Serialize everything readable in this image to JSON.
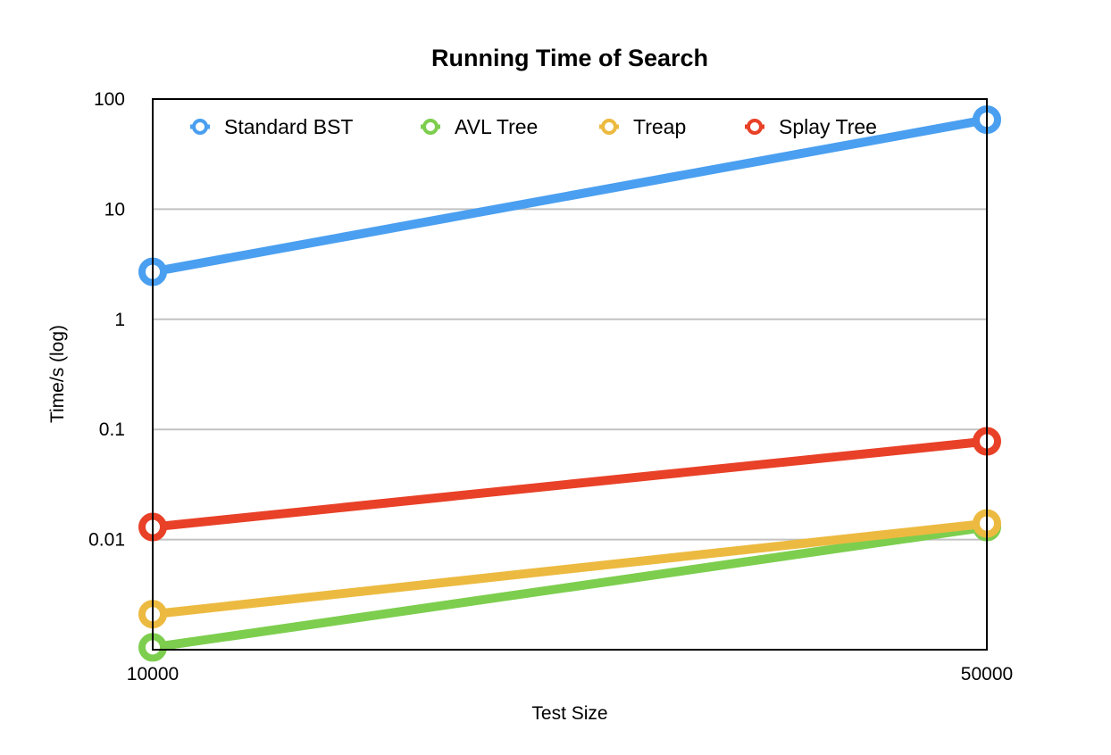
{
  "chart_data": {
    "type": "line",
    "title": "Running Time of Search",
    "xlabel": "Test Size",
    "ylabel": "Time/s (log)",
    "yscale": "log",
    "ylim": [
      0.001,
      100
    ],
    "y_ticks": [
      100,
      10,
      1,
      0.1,
      0.01
    ],
    "y_tick_labels": [
      "100",
      "10",
      "1",
      "0.1",
      "0.01"
    ],
    "x": [
      10000,
      50000
    ],
    "x_tick_labels": [
      "10000",
      "50000"
    ],
    "grid": true,
    "legend_position": "top",
    "series": [
      {
        "name": "Standard BST",
        "color": "#4A9FF0",
        "values": [
          2.7,
          65
        ]
      },
      {
        "name": "AVL Tree",
        "color": "#7DCE4E",
        "values": [
          0.00105,
          0.013
        ]
      },
      {
        "name": "Treap",
        "color": "#ECBA40",
        "values": [
          0.0021,
          0.014
        ]
      },
      {
        "name": "Splay Tree",
        "color": "#E84128",
        "values": [
          0.013,
          0.078
        ]
      }
    ]
  }
}
